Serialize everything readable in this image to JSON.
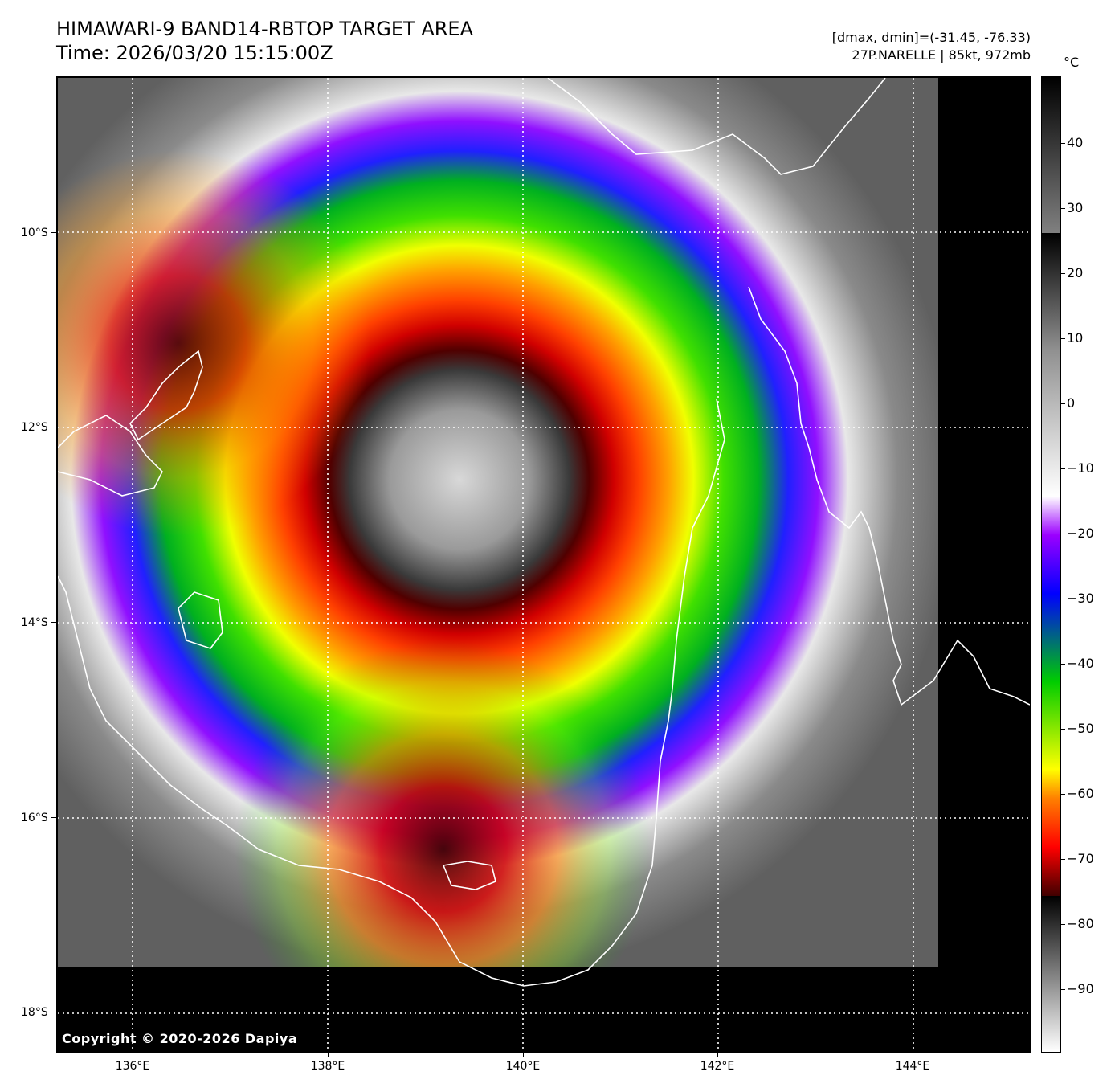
{
  "header": {
    "title": "HIMAWARI-9 BAND14-RBTOP TARGET AREA",
    "time": "Time: 2026/03/20 15:15:00Z",
    "range_info": "[dmax, dmin]=(-31.45, -76.33)",
    "storm_info": "27P.NARELLE | 85kt, 972mb"
  },
  "map": {
    "copyright": "Copyright © 2020-2026 Dapiya",
    "latitude_labels": [
      "10°S",
      "12°S",
      "14°S",
      "16°S",
      "18°S"
    ],
    "longitude_labels": [
      "136°E",
      "138°E",
      "140°E",
      "142°E",
      "144°E"
    ]
  },
  "colorbar": {
    "unit": "°C",
    "labels": [
      "40",
      "30",
      "20",
      "10",
      "0",
      "−10",
      "−20",
      "−30",
      "−40",
      "−50",
      "−60",
      "−70",
      "−80",
      "−90"
    ],
    "colors": {
      "warm_gray": "#808080",
      "white": "#ffffff",
      "purple": "#9b00ff",
      "blue": "#0000ff",
      "green": "#00cc00",
      "yellow": "#ffff00",
      "orange": "#ff8000",
      "red": "#ff0000",
      "dark_red": "#400000"
    }
  }
}
